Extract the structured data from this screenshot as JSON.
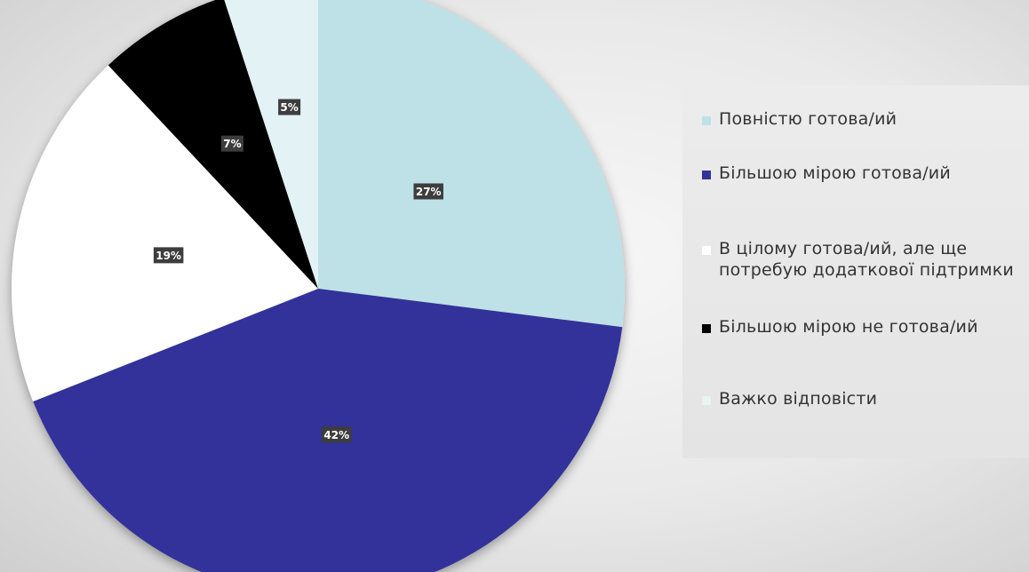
{
  "chart_data": {
    "type": "pie",
    "title": "",
    "categories": [
      "Повністю готова/ий",
      "Більшою мірою готова/ий",
      "В цілому готова/ий, але ще потребую додаткової підтримки",
      "Більшою мірою не готова/ий",
      "Важко відповісти"
    ],
    "values": [
      27,
      42,
      19,
      7,
      5
    ],
    "data_labels": [
      "27%",
      "42%",
      "19%",
      "7%",
      "5%"
    ],
    "colors": [
      "#bde1e6",
      "#32329a",
      "#ffffff",
      "#000000",
      "#e3f3f5"
    ],
    "start_angle_deg": 0,
    "direction": "clockwise",
    "legend_position": "right",
    "legend_swatch_colors": [
      "#bde1e6",
      "#32329a",
      "#ffffff",
      "#000000",
      "#e8f3f4"
    ]
  }
}
